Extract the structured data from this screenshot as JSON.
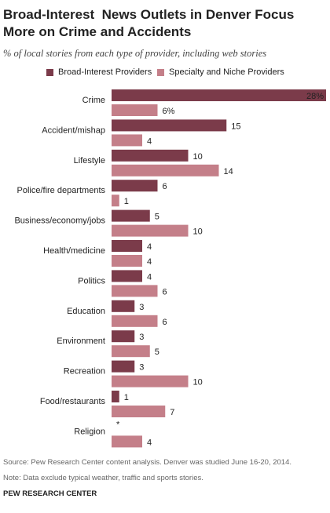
{
  "header": {
    "title_line1": "Broad-Interest  News Outlets in Denver Focus",
    "title_line2": "More on Crime and Accidents",
    "subtitle": "% of local stories from each type of provider, including web stories"
  },
  "colors": {
    "broad": "#7b3b4a",
    "specialty": "#c47f89",
    "text": "#222222",
    "note": "#666666"
  },
  "chart_data": {
    "type": "bar",
    "orientation": "horizontal",
    "categories": [
      "Crime",
      "Accident/mishap",
      "Lifestyle",
      "Police/fire departments",
      "Business/economy/jobs",
      "Health/medicine",
      "Politics",
      "Education",
      "Environment",
      "Recreation",
      "Food/restaurants",
      "Religion"
    ],
    "series": [
      {
        "name": "Broad-Interest Providers",
        "values": [
          28,
          15,
          10,
          6,
          5,
          4,
          4,
          3,
          3,
          3,
          1,
          0
        ],
        "labels": [
          "28%",
          "15",
          "10",
          "6",
          "5",
          "4",
          "4",
          "3",
          "3",
          "3",
          "1",
          "*"
        ]
      },
      {
        "name": "Specialty and Niche Providers",
        "values": [
          6,
          4,
          14,
          1,
          10,
          4,
          6,
          6,
          5,
          10,
          7,
          4
        ],
        "labels": [
          "6%",
          "4",
          "14",
          "1",
          "10",
          "4",
          "6",
          "6",
          "5",
          "10",
          "7",
          "4"
        ]
      }
    ],
    "xlim": [
      0,
      28
    ],
    "legend_position": "top"
  },
  "footer": {
    "source": "Source: Pew Research Center content analysis. Denver was studied June 16-20, 2014.",
    "note": "Note: Data exclude typical weather, traffic and sports stories.",
    "credit": "PEW RESEARCH CENTER"
  }
}
